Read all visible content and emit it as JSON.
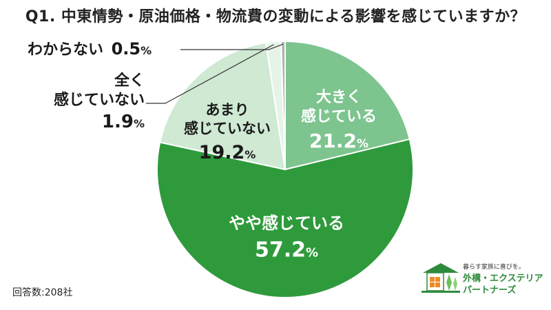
{
  "title": "Q1. 中東情勢・原油価格・物流費の変動による影響を感じていますか？",
  "footnote": "回答数:208社",
  "logo": {
    "tagline": "暮らす家族に喜びを。",
    "brand_line1": "外構・エクステリア",
    "brand_line2": "パートナーズ"
  },
  "colors": {
    "large": "#7dc48f",
    "medium": "#2e9a3c",
    "small_light": "#cfe9d3",
    "very_light": "#e6f4e8",
    "tiny": "#b0b0b0",
    "leader": "#333333"
  },
  "chart_data": {
    "type": "pie",
    "title": "Q1. 中東情勢・原油価格・物流費の変動による影響を感じていますか？",
    "unit": "%",
    "start": "12 o'clock",
    "direction": "clockwise",
    "slices": [
      {
        "label": "大きく感じている",
        "label_lines": [
          "大きく",
          "感じている"
        ],
        "value": 21.2,
        "color": "#7dc48f",
        "label_position": "inside"
      },
      {
        "label": "やや感じている",
        "label_lines": [
          "やや感じている"
        ],
        "value": 57.2,
        "color": "#2e9a3c",
        "label_position": "inside"
      },
      {
        "label": "あまり感じていない",
        "label_lines": [
          "あまり",
          "感じていない"
        ],
        "value": 19.2,
        "color": "#cfe9d3",
        "label_position": "inside"
      },
      {
        "label": "全く感じていない",
        "label_lines": [
          "全く",
          "感じていない"
        ],
        "value": 1.9,
        "color": "#e6f4e8",
        "label_position": "outside"
      },
      {
        "label": "わからない",
        "label_lines": [
          "わからない"
        ],
        "value": 0.5,
        "color": "#b0b0b0",
        "label_position": "outside"
      }
    ]
  }
}
